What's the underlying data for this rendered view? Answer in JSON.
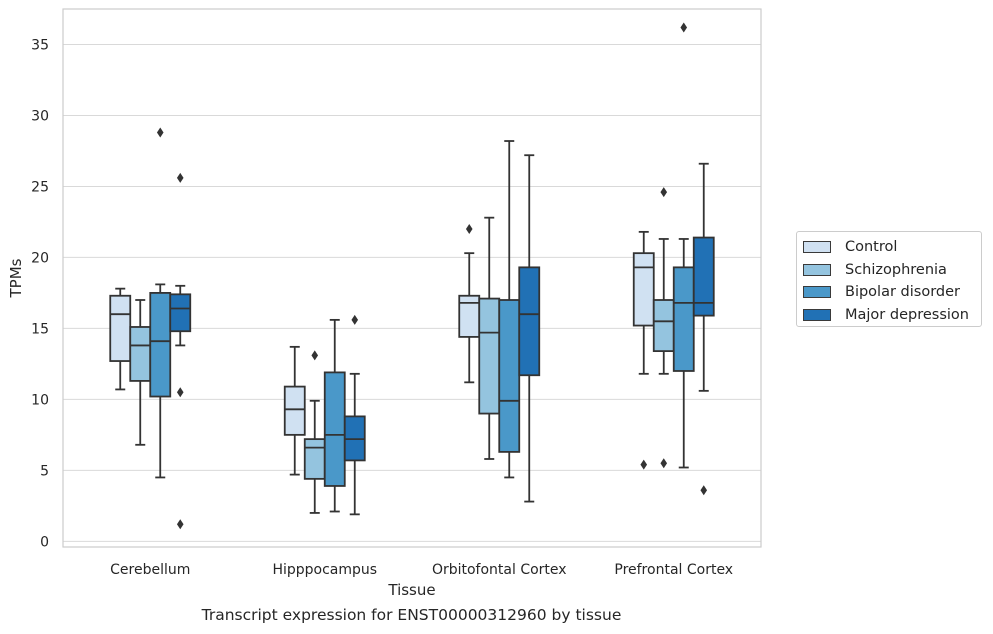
{
  "caption": "Transcript expression for ENST00000312960 by tissue",
  "colors": {
    "Control": "#d0e1f2",
    "Schizophrenia": "#94c4df",
    "Bipolar disorder": "#4a98c9",
    "Major depression": "#2171b5",
    "grid": "#d9d9d9",
    "frame": "#cccccc",
    "line": "#333333"
  },
  "chart_data": {
    "type": "box",
    "xlabel": "Tissue",
    "ylabel": "TPMs",
    "ylim": [
      -0.4,
      37.5
    ],
    "yticks": [
      0,
      5,
      10,
      15,
      20,
      25,
      30,
      35
    ],
    "grid": "horizontal",
    "legend_position": "right",
    "categories": [
      "Cerebellum",
      "Hipppocampus",
      "Orbitofontal Cortex",
      "Prefrontal Cortex"
    ],
    "series": [
      {
        "name": "Control",
        "boxes": [
          {
            "whislo": 10.7,
            "q1": 12.7,
            "med": 16.0,
            "q3": 17.3,
            "whishi": 17.8,
            "fliers": []
          },
          {
            "whislo": 4.7,
            "q1": 7.5,
            "med": 9.3,
            "q3": 10.9,
            "whishi": 13.7,
            "fliers": []
          },
          {
            "whislo": 11.2,
            "q1": 14.4,
            "med": 16.8,
            "q3": 17.3,
            "whishi": 20.3,
            "fliers": [
              22.0
            ]
          },
          {
            "whislo": 11.8,
            "q1": 15.2,
            "med": 19.3,
            "q3": 20.3,
            "whishi": 21.8,
            "fliers": [
              5.4
            ]
          }
        ]
      },
      {
        "name": "Schizophrenia",
        "boxes": [
          {
            "whislo": 6.8,
            "q1": 11.3,
            "med": 13.8,
            "q3": 15.1,
            "whishi": 17.0,
            "fliers": []
          },
          {
            "whislo": 2.0,
            "q1": 4.4,
            "med": 6.6,
            "q3": 7.2,
            "whishi": 9.9,
            "fliers": [
              13.1
            ]
          },
          {
            "whislo": 5.8,
            "q1": 9.0,
            "med": 14.7,
            "q3": 17.1,
            "whishi": 22.8,
            "fliers": []
          },
          {
            "whislo": 11.8,
            "q1": 13.4,
            "med": 15.5,
            "q3": 17.0,
            "whishi": 21.3,
            "fliers": [
              24.6,
              5.5
            ]
          }
        ]
      },
      {
        "name": "Bipolar disorder",
        "boxes": [
          {
            "whislo": 4.5,
            "q1": 10.2,
            "med": 14.1,
            "q3": 17.5,
            "whishi": 18.1,
            "fliers": [
              28.8
            ]
          },
          {
            "whislo": 2.1,
            "q1": 3.9,
            "med": 7.5,
            "q3": 11.9,
            "whishi": 15.6,
            "fliers": []
          },
          {
            "whislo": 4.5,
            "q1": 6.3,
            "med": 9.9,
            "q3": 17.0,
            "whishi": 28.2,
            "fliers": []
          },
          {
            "whislo": 5.2,
            "q1": 12.0,
            "med": 16.8,
            "q3": 19.3,
            "whishi": 21.3,
            "fliers": [
              36.2
            ]
          }
        ]
      },
      {
        "name": "Major depression",
        "boxes": [
          {
            "whislo": 13.8,
            "q1": 14.8,
            "med": 16.4,
            "q3": 17.4,
            "whishi": 18.0,
            "fliers": [
              25.6,
              10.5,
              1.2
            ]
          },
          {
            "whislo": 1.9,
            "q1": 5.7,
            "med": 7.2,
            "q3": 8.8,
            "whishi": 11.8,
            "fliers": [
              15.6
            ]
          },
          {
            "whislo": 2.8,
            "q1": 11.7,
            "med": 16.0,
            "q3": 19.3,
            "whishi": 27.2,
            "fliers": []
          },
          {
            "whislo": 10.6,
            "q1": 15.9,
            "med": 16.8,
            "q3": 21.4,
            "whishi": 26.6,
            "fliers": [
              3.6
            ]
          }
        ]
      }
    ]
  }
}
